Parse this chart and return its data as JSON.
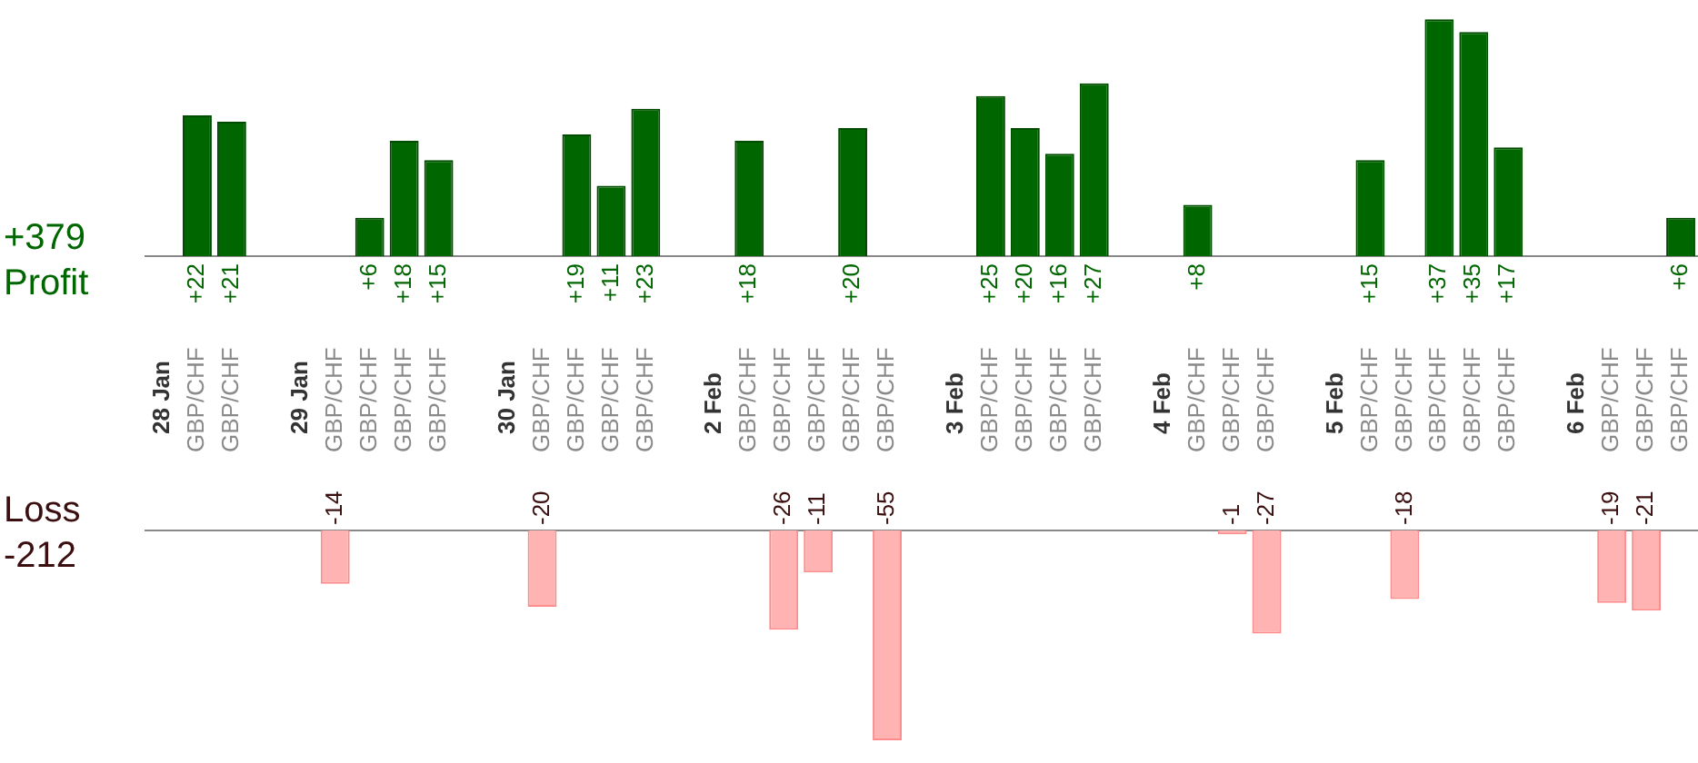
{
  "chart_data": [
    {
      "type": "bar",
      "categories": [
        "28 Jan",
        "GBP/CHF",
        "GBP/CHF",
        null,
        "29 Jan",
        "GBP/CHF",
        "GBP/CHF",
        "GBP/CHF",
        "GBP/CHF",
        null,
        "30 Jan",
        "GBP/CHF",
        "GBP/CHF",
        "GBP/CHF",
        "GBP/CHF",
        null,
        "2 Feb",
        "GBP/CHF",
        "GBP/CHF",
        "GBP/CHF",
        "GBP/CHF",
        "GBP/CHF",
        null,
        "3 Feb",
        "GBP/CHF",
        "GBP/CHF",
        "GBP/CHF",
        "GBP/CHF",
        null,
        "4 Feb",
        "GBP/CHF",
        "GBP/CHF",
        "GBP/CHF",
        null,
        "5 Feb",
        "GBP/CHF",
        "GBP/CHF",
        "GBP/CHF",
        "GBP/CHF",
        "GBP/CHF",
        null,
        "6 Feb",
        "GBP/CHF",
        "GBP/CHF",
        "GBP/CHF"
      ],
      "values": [
        null,
        22,
        21,
        null,
        null,
        null,
        6,
        18,
        15,
        null,
        null,
        null,
        19,
        11,
        23,
        null,
        null,
        18,
        null,
        null,
        20,
        null,
        null,
        null,
        25,
        20,
        16,
        27,
        null,
        null,
        8,
        null,
        null,
        null,
        null,
        15,
        null,
        37,
        35,
        17,
        null,
        null,
        null,
        null,
        6
      ],
      "value_labels": [
        null,
        "+22",
        "+21",
        null,
        null,
        null,
        "+6",
        "+18",
        "+15",
        null,
        null,
        null,
        "+19",
        "+11",
        "+23",
        null,
        null,
        "+18",
        null,
        null,
        "+20",
        null,
        null,
        null,
        "+25",
        "+20",
        "+16",
        "+27",
        null,
        null,
        "+8",
        null,
        null,
        null,
        null,
        "+15",
        null,
        "+37",
        "+35",
        "+17",
        null,
        null,
        null,
        null,
        "+6"
      ],
      "color": "#006600",
      "legend": false,
      "tick_labels": "x",
      "annotations": [
        "+379",
        "Profit"
      ]
    },
    {
      "type": "bar",
      "values": [
        null,
        null,
        null,
        null,
        null,
        -14,
        null,
        null,
        null,
        null,
        null,
        -20,
        null,
        null,
        null,
        null,
        null,
        null,
        -26,
        -11,
        null,
        -55,
        null,
        null,
        null,
        null,
        null,
        null,
        null,
        null,
        null,
        -1,
        -27,
        null,
        null,
        null,
        -18,
        null,
        null,
        null,
        null,
        null,
        -19,
        -21,
        null
      ],
      "value_labels": [
        null,
        null,
        null,
        null,
        null,
        "-14",
        null,
        null,
        null,
        null,
        null,
        "-20",
        null,
        null,
        null,
        null,
        null,
        null,
        "-26",
        "-11",
        null,
        "-55",
        null,
        null,
        null,
        null,
        null,
        null,
        null,
        null,
        null,
        "-1",
        "-27",
        null,
        null,
        null,
        "-18",
        null,
        null,
        null,
        null,
        null,
        "-19",
        "-21",
        null
      ],
      "color": "#ffb3b3",
      "legend": false,
      "tick_labels": false,
      "annotations": [
        "Loss",
        "-212"
      ]
    }
  ]
}
